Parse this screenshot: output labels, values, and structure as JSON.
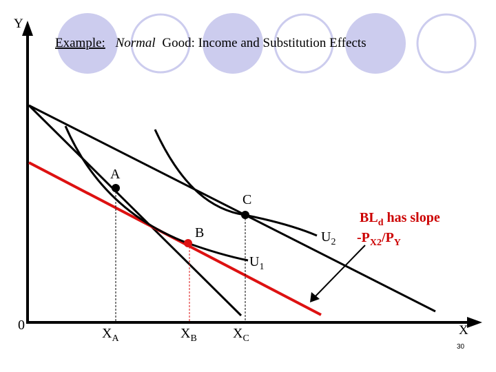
{
  "title": {
    "prefix": "Example:",
    "italic": "Normal",
    "rest": "Good: Income and Substitution Effects"
  },
  "axes": {
    "y_label": "Y",
    "x_label": "X",
    "origin": "0"
  },
  "points": {
    "a": "A",
    "b": "B",
    "c": "C"
  },
  "curves": {
    "u1": {
      "base": "U",
      "sub": "1"
    },
    "u2": {
      "base": "U",
      "sub": "2"
    }
  },
  "ticks": {
    "xa": {
      "base": "X",
      "sub": "A"
    },
    "xb": {
      "base": "X",
      "sub": "B"
    },
    "xc": {
      "base": "X",
      "sub": "C"
    }
  },
  "note": {
    "line1_base": "BL",
    "line1_sub": "d",
    "line1_rest": " has slope",
    "line2_prefix": "-P",
    "line2_sub1": "X2",
    "line2_mid": "/P",
    "line2_sub2": "Y"
  },
  "page_number": "30",
  "colors": {
    "decor_circle": "#ccccee",
    "red": "#dd1111",
    "line": "#000000"
  }
}
